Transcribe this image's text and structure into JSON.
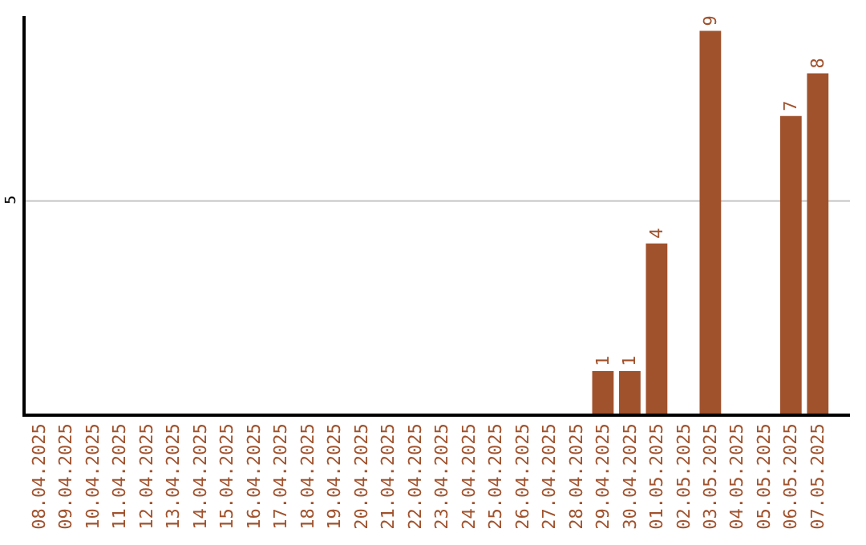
{
  "chart_data": {
    "type": "bar",
    "categories": [
      "08.04.2025",
      "09.04.2025",
      "10.04.2025",
      "11.04.2025",
      "12.04.2025",
      "13.04.2025",
      "14.04.2025",
      "15.04.2025",
      "16.04.2025",
      "17.04.2025",
      "18.04.2025",
      "19.04.2025",
      "20.04.2025",
      "21.04.2025",
      "22.04.2025",
      "23.04.2025",
      "24.04.2025",
      "25.04.2025",
      "26.04.2025",
      "27.04.2025",
      "28.04.2025",
      "29.04.2025",
      "30.04.2025",
      "01.05.2025",
      "02.05.2025",
      "03.05.2025",
      "04.05.2025",
      "05.05.2025",
      "06.05.2025",
      "07.05.2025"
    ],
    "values": [
      null,
      null,
      null,
      null,
      null,
      null,
      null,
      null,
      null,
      null,
      null,
      null,
      null,
      null,
      null,
      null,
      null,
      null,
      null,
      null,
      null,
      1,
      1,
      4,
      null,
      9,
      null,
      null,
      7,
      8
    ],
    "value_labels": [
      null,
      null,
      null,
      null,
      null,
      null,
      null,
      null,
      null,
      null,
      null,
      null,
      null,
      null,
      null,
      null,
      null,
      null,
      null,
      null,
      null,
      "1",
      "1",
      "4",
      null,
      "9",
      null,
      null,
      "7",
      "8"
    ],
    "color": "#a0522d",
    "ylim": [
      0,
      9.35
    ],
    "legend": false,
    "ref_lines": [
      {
        "axis": "y",
        "value": 5,
        "label": "5",
        "color": "#c8c8c8"
      }
    ]
  }
}
